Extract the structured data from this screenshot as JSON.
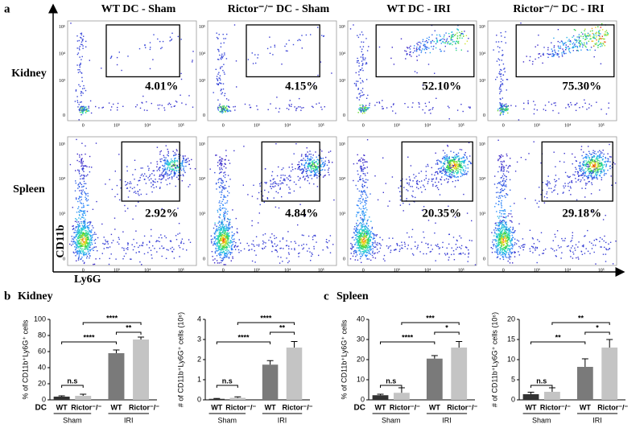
{
  "panel_labels": [
    "a",
    "b",
    "c"
  ],
  "flow": {
    "columns": [
      "WT DC - Sham",
      "Rictor⁻/⁻ DC - Sham",
      "WT DC - IRI",
      "Rictor⁻/⁻ DC - IRI"
    ],
    "rows": [
      "Kidney",
      "Spleen"
    ],
    "x_label": "Ly6G",
    "y_label": "CD11b",
    "xticks": [
      "0",
      "10³",
      "10⁴",
      "10⁵"
    ],
    "yticks": [
      "10⁵",
      "10⁴",
      "10³",
      "0"
    ],
    "gates": [
      [
        "4.01%",
        "4.15%",
        "52.10%",
        "75.30%"
      ],
      [
        "2.92%",
        "4.84%",
        "20.35%",
        "29.18%"
      ]
    ]
  },
  "chart_data": [
    {
      "type": "bar",
      "title": "Kidney",
      "y_label": "% of CD11b⁺Ly6G⁺ cells",
      "row_label": "DC",
      "categories": [
        "WT",
        "Rictor⁻/⁻",
        "WT",
        "Rictor⁻/⁻"
      ],
      "groups": [
        "Sham",
        "IRI"
      ],
      "values": [
        4,
        5,
        58,
        75
      ],
      "errors": [
        1,
        2,
        4,
        3
      ],
      "colors": [
        "#333333",
        "#c4c4c4",
        "#7a7a7a",
        "#c4c4c4"
      ],
      "ylim": [
        0,
        100
      ],
      "yticks": [
        0,
        20,
        40,
        60,
        80,
        100
      ],
      "comparisons": [
        "n.s",
        "**",
        "****",
        "****"
      ]
    },
    {
      "type": "bar",
      "y_label": "# of CD11b⁺Ly6G⁺ cells (10⁶)",
      "categories": [
        "WT",
        "Rictor⁻/⁻",
        "WT",
        "Rictor⁻/⁻"
      ],
      "groups": [
        "Sham",
        "IRI"
      ],
      "values": [
        0.05,
        0.1,
        1.75,
        2.6
      ],
      "errors": [
        0.02,
        0.05,
        0.2,
        0.3
      ],
      "colors": [
        "#333333",
        "#c4c4c4",
        "#7a7a7a",
        "#c4c4c4"
      ],
      "ylim": [
        0,
        4
      ],
      "yticks": [
        0,
        1,
        2,
        3,
        4
      ],
      "comparisons": [
        "n.s",
        "**",
        "****",
        "****"
      ]
    },
    {
      "type": "bar",
      "title": "Spleen",
      "y_label": "% of CD11b⁺Ly6G⁺ cells",
      "row_label": "DC",
      "categories": [
        "WT",
        "Rictor⁻/⁻",
        "WT",
        "Rictor⁻/⁻"
      ],
      "groups": [
        "Sham",
        "IRI"
      ],
      "values": [
        2.3,
        3.5,
        20.5,
        26
      ],
      "errors": [
        0.5,
        2.5,
        1.5,
        3
      ],
      "colors": [
        "#333333",
        "#c4c4c4",
        "#7a7a7a",
        "#c4c4c4"
      ],
      "ylim": [
        0,
        40
      ],
      "yticks": [
        0,
        10,
        20,
        30,
        40
      ],
      "comparisons": [
        "n.s",
        "*",
        "****",
        "***"
      ]
    },
    {
      "type": "bar",
      "y_label": "# of CD11b⁺Ly6G⁺ cells (10⁶)",
      "categories": [
        "WT",
        "Rictor⁻/⁻",
        "WT",
        "Rictor⁻/⁻"
      ],
      "groups": [
        "Sham",
        "IRI"
      ],
      "values": [
        1.4,
        2,
        8.2,
        13
      ],
      "errors": [
        0.5,
        1,
        2,
        2
      ],
      "colors": [
        "#333333",
        "#c4c4c4",
        "#7a7a7a",
        "#c4c4c4"
      ],
      "ylim": [
        0,
        20
      ],
      "yticks": [
        0,
        5,
        10,
        15,
        20
      ],
      "comparisons": [
        "n.s",
        "*",
        "**",
        "**"
      ]
    }
  ]
}
